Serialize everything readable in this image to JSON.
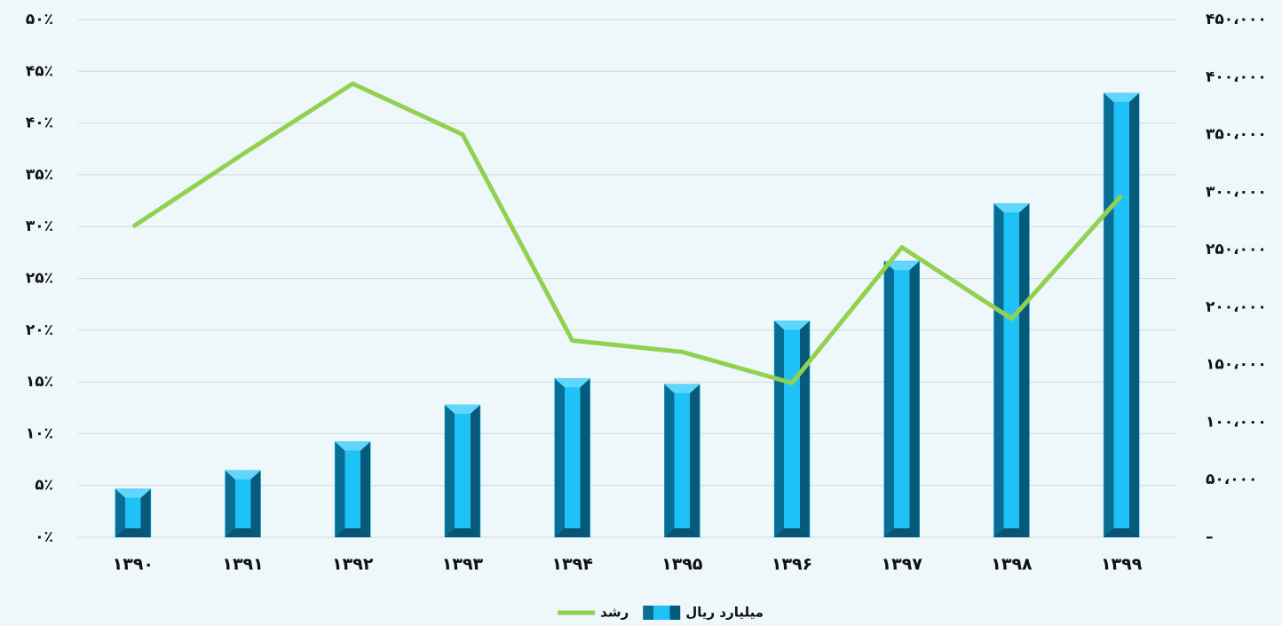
{
  "chart_data": {
    "type": "bar_line",
    "categories": [
      "۱۳۹۰",
      "۱۳۹۱",
      "۱۳۹۲",
      "۱۳۹۳",
      "۱۳۹۴",
      "۱۳۹۵",
      "۱۳۹۶",
      "۱۳۹۷",
      "۱۳۹۸",
      "۱۳۹۹"
    ],
    "series": [
      {
        "name": "میلیارد ریال",
        "type": "bar",
        "axis": "y2",
        "color": "#00b0f0",
        "values": [
          42000,
          58000,
          83000,
          115000,
          138000,
          133000,
          188000,
          240000,
          290000,
          386000
        ]
      },
      {
        "name": "رشد",
        "type": "line",
        "axis": "y",
        "color": "#92d050",
        "values": [
          30,
          37,
          43.8,
          38.9,
          19,
          17.9,
          14.9,
          28,
          21.1,
          33
        ]
      }
    ],
    "ylim": [
      0,
      50
    ],
    "yticks": [
      {
        "value": 0,
        "label": "۰٪"
      },
      {
        "value": 5,
        "label": "۵٪"
      },
      {
        "value": 10,
        "label": "۱۰٪"
      },
      {
        "value": 15,
        "label": "۱۵٪"
      },
      {
        "value": 20,
        "label": "۲۰٪"
      },
      {
        "value": 25,
        "label": "۲۵٪"
      },
      {
        "value": 30,
        "label": "۳۰٪"
      },
      {
        "value": 35,
        "label": "۳۵٪"
      },
      {
        "value": 40,
        "label": "۴۰٪"
      },
      {
        "value": 45,
        "label": "۴۵٪"
      },
      {
        "value": 50,
        "label": "۵۰٪"
      }
    ],
    "y2lim": [
      0,
      450000
    ],
    "y2ticks": [
      {
        "value": 0,
        "label": "–"
      },
      {
        "value": 50000,
        "label": "۵۰،۰۰۰"
      },
      {
        "value": 100000,
        "label": "۱۰۰،۰۰۰"
      },
      {
        "value": 150000,
        "label": "۱۵۰،۰۰۰"
      },
      {
        "value": 200000,
        "label": "۲۰۰،۰۰۰"
      },
      {
        "value": 250000,
        "label": "۲۵۰،۰۰۰"
      },
      {
        "value": 300000,
        "label": "۳۰۰،۰۰۰"
      },
      {
        "value": 350000,
        "label": "۳۵۰،۰۰۰"
      },
      {
        "value": 400000,
        "label": "۴۰۰،۰۰۰"
      },
      {
        "value": 450000,
        "label": "۴۵۰،۰۰۰"
      }
    ],
    "grid": true,
    "legend": "bottom"
  }
}
